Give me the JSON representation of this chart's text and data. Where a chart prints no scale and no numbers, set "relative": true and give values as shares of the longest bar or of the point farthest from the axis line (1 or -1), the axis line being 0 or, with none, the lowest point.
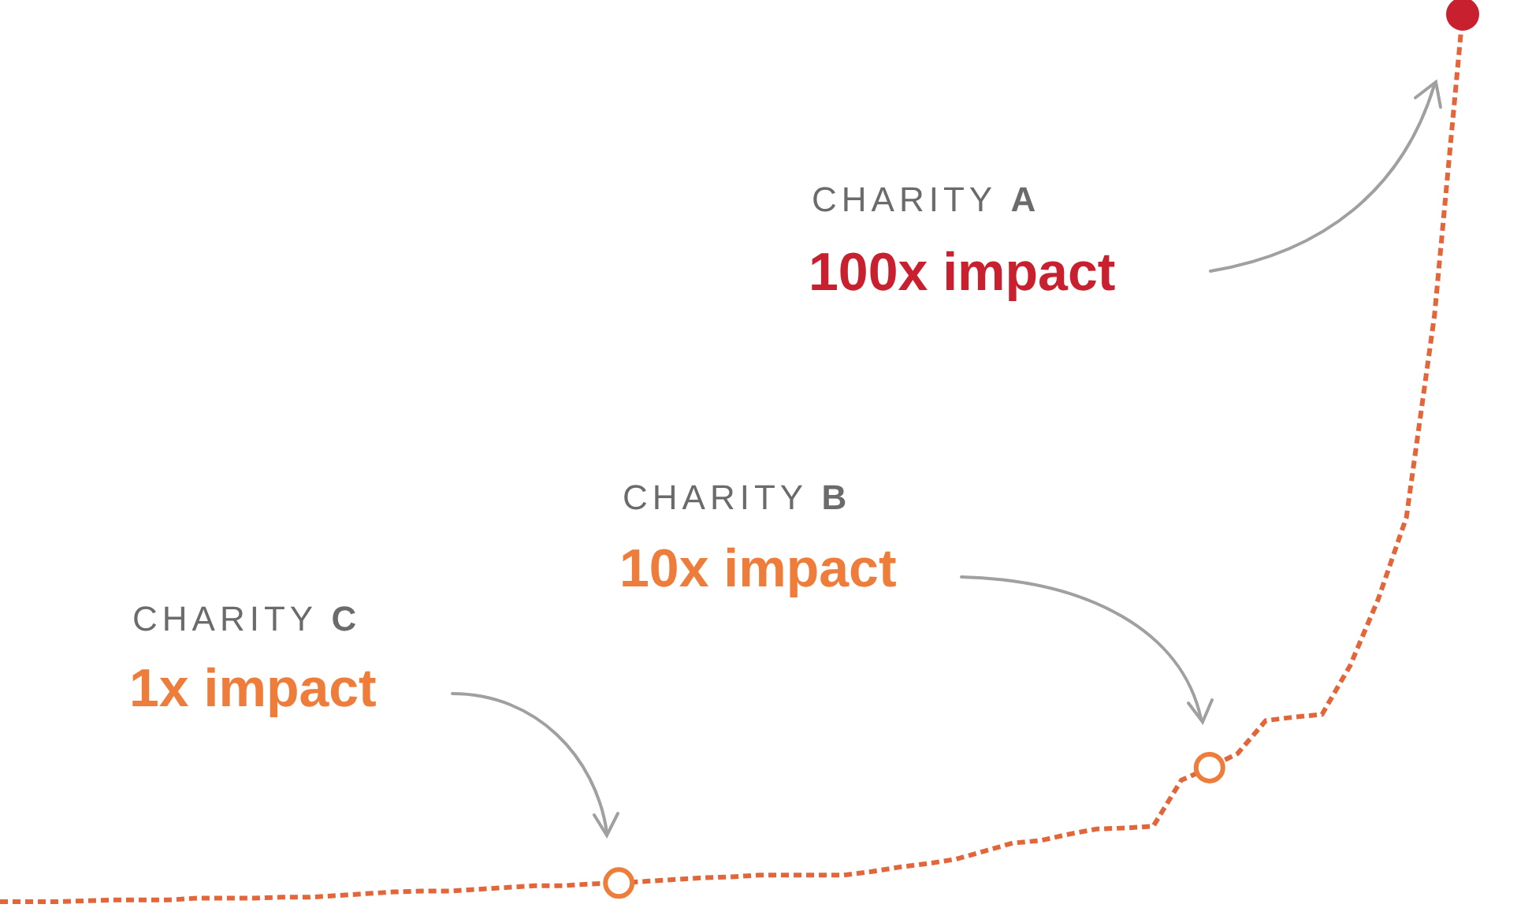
{
  "chart_data": {
    "type": "line",
    "relative": true,
    "tick_labels": false,
    "line_style": "dashed",
    "categories": [
      null,
      null,
      null,
      null,
      null,
      null,
      null,
      null,
      null,
      null,
      null,
      null,
      null,
      null,
      null,
      null,
      null,
      null,
      null,
      null,
      null,
      null,
      null,
      null,
      null,
      null,
      null,
      null,
      null,
      null,
      null,
      null,
      null,
      null,
      null,
      null,
      null,
      null,
      null,
      null,
      null,
      null,
      null,
      null,
      null,
      null,
      null,
      null,
      null,
      null,
      null,
      null,
      null
    ],
    "series": [
      {
        "color": "#e2663a",
        "values": [
          0,
          0,
          0,
          0.001,
          0.002,
          0.002,
          0.002,
          0.004,
          0.004,
          0.004,
          0.005,
          0.005,
          0.007,
          0.009,
          0.011,
          0.012,
          0.012,
          0.014,
          0.016,
          0.018,
          0.018,
          0.02,
          0.021,
          0.023,
          0.025,
          0.027,
          0.028,
          0.03,
          0.03,
          0.03,
          0.03,
          0.034,
          0.039,
          0.043,
          0.048,
          0.057,
          0.066,
          0.069,
          0.076,
          0.082,
          0.083,
          0.085,
          0.137,
          0.151,
          0.167,
          0.204,
          0.208,
          0.211,
          0.266,
          0.341,
          0.433,
          0.661,
          1
        ],
        "colors": [
          null,
          null,
          null,
          null,
          null,
          null,
          null,
          null,
          null,
          null,
          null,
          null,
          null,
          null,
          null,
          null,
          null,
          null,
          null,
          null,
          null,
          null,
          "#ee7d3b",
          null,
          null,
          null,
          null,
          null,
          null,
          null,
          null,
          null,
          null,
          null,
          null,
          null,
          null,
          null,
          null,
          null,
          null,
          null,
          null,
          "#ee7d3b",
          null,
          null,
          null,
          null,
          null,
          null,
          null,
          null,
          "#c8202f"
        ]
      }
    ],
    "annotations": [
      "CHARITY A",
      "100x impact",
      "CHARITY B",
      "10x impact",
      "CHARITY C",
      "1x impact"
    ]
  }
}
